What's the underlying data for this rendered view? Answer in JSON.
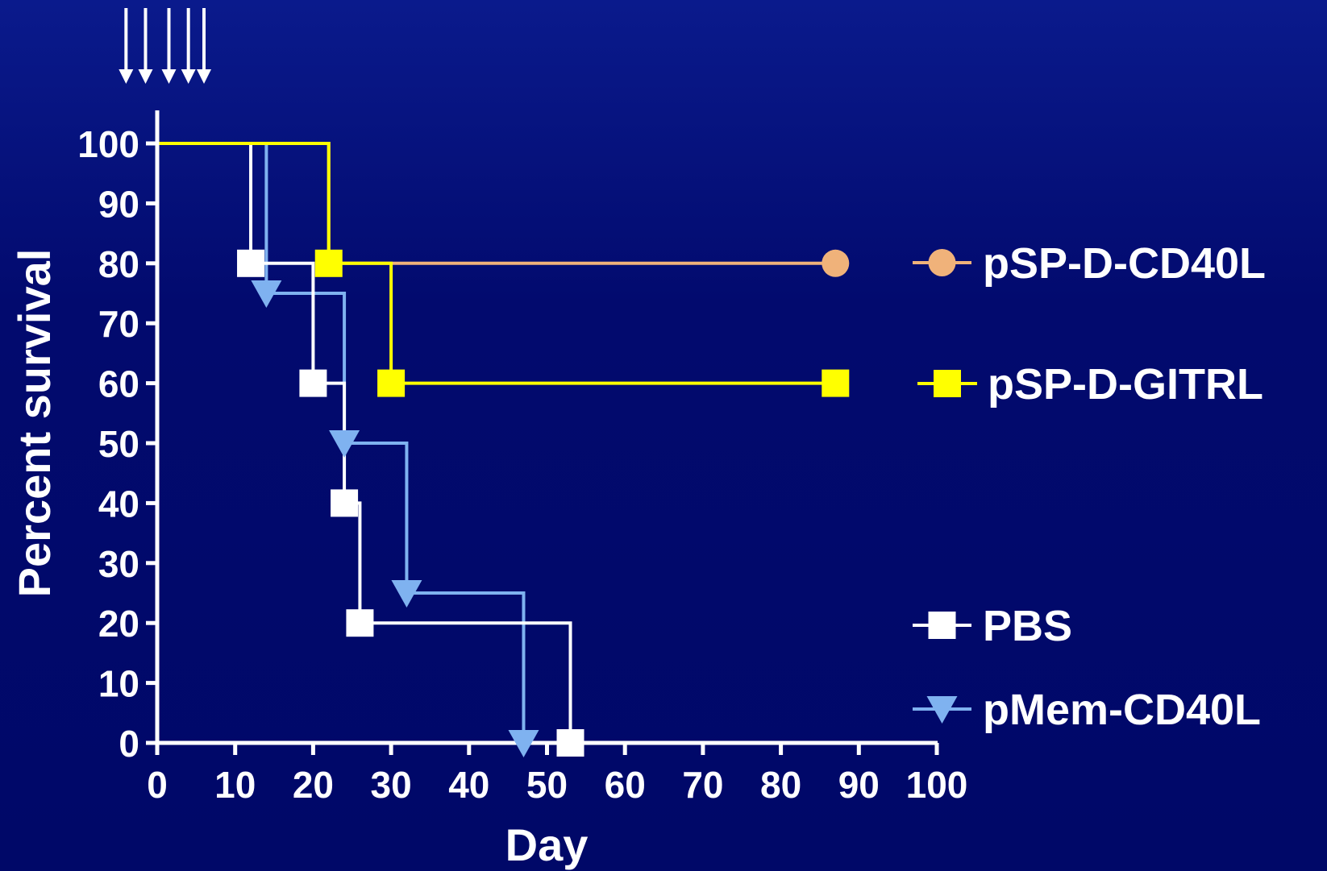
{
  "chart_data": {
    "type": "line",
    "subtype": "kaplan-meier-step",
    "title": "",
    "xlabel": "Day",
    "ylabel": "Percent survival",
    "xlim": [
      0,
      100
    ],
    "ylim": [
      0,
      100
    ],
    "xticks": [
      0,
      10,
      20,
      30,
      40,
      50,
      60,
      70,
      80,
      90,
      100
    ],
    "yticks": [
      0,
      10,
      20,
      30,
      40,
      50,
      60,
      70,
      80,
      90,
      100
    ],
    "xtick_labels": [
      "0",
      "10",
      "20",
      "30",
      "40",
      "50",
      "60",
      "70",
      "80",
      "90",
      "100"
    ],
    "ytick_labels": [
      "0",
      "10",
      "20",
      "30",
      "40",
      "50",
      "60",
      "70",
      "80",
      "90",
      "100"
    ],
    "grid": false,
    "legend_position": "right",
    "treatment_arrows_days": [
      -4,
      -1.5,
      1.5,
      4,
      6
    ],
    "series": [
      {
        "name": "pSP-D-CD40L",
        "color": "#f0b27a",
        "marker": "circle",
        "steps": [
          [
            0,
            100
          ],
          [
            22,
            80
          ],
          [
            87,
            80
          ]
        ],
        "marked_points": [
          [
            87,
            80
          ]
        ]
      },
      {
        "name": "pSP-D-GITRL",
        "color": "#ffff00",
        "marker": "square",
        "steps": [
          [
            0,
            100
          ],
          [
            22,
            80
          ],
          [
            30,
            60
          ],
          [
            87,
            60
          ]
        ],
        "marked_points": [
          [
            22,
            80
          ],
          [
            30,
            60
          ],
          [
            87,
            60
          ]
        ]
      },
      {
        "name": "PBS",
        "color": "#ffffff",
        "marker": "square",
        "steps": [
          [
            0,
            100
          ],
          [
            12,
            80
          ],
          [
            20,
            60
          ],
          [
            24,
            40
          ],
          [
            26,
            20
          ],
          [
            53,
            0
          ]
        ],
        "marked_points": [
          [
            12,
            80
          ],
          [
            20,
            60
          ],
          [
            24,
            40
          ],
          [
            26,
            20
          ],
          [
            53,
            0
          ]
        ]
      },
      {
        "name": "pMem-CD40L",
        "color": "#7fb2f0",
        "marker": "triangle-down",
        "steps": [
          [
            0,
            100
          ],
          [
            14,
            75
          ],
          [
            24,
            50
          ],
          [
            32,
            25
          ],
          [
            47,
            0
          ]
        ],
        "marked_points": [
          [
            14,
            75
          ],
          [
            24,
            50
          ],
          [
            32,
            25
          ],
          [
            47,
            0
          ]
        ]
      }
    ]
  }
}
